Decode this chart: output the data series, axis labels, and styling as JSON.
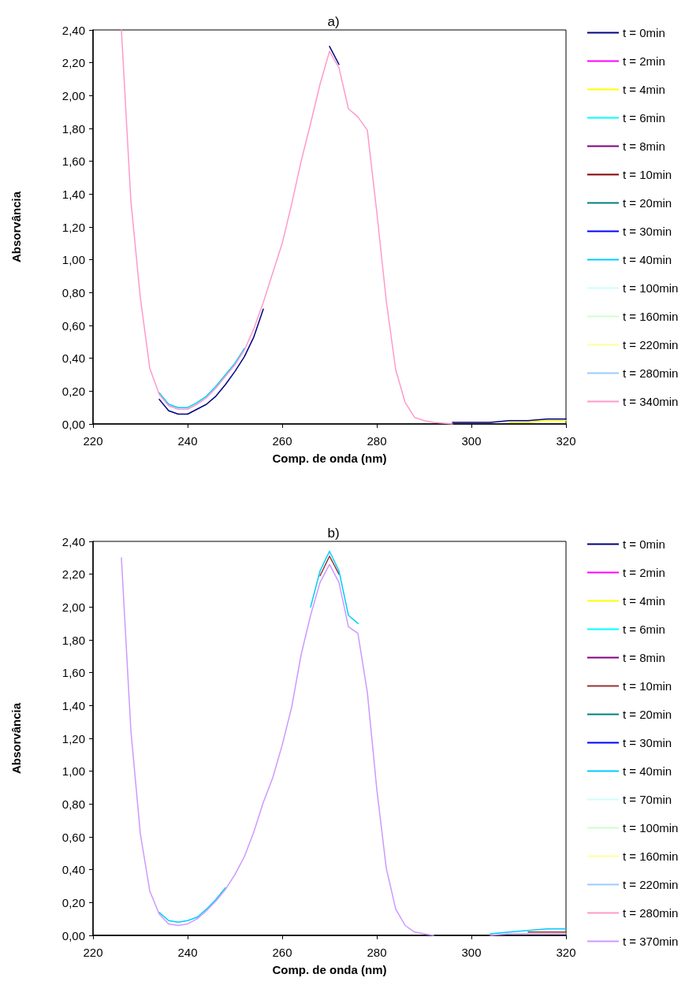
{
  "chart_data": [
    {
      "type": "line",
      "title": "a)",
      "xlabel": "Comp. de onda (nm)",
      "ylabel": "Absorvância",
      "legend": "right",
      "grid": false,
      "marker": "none",
      "x": [
        226,
        228,
        230,
        232,
        234,
        236,
        238,
        240,
        242,
        244,
        246,
        248,
        250,
        252,
        254,
        256,
        258,
        260,
        262,
        264,
        266,
        268,
        270,
        272,
        274,
        276,
        278,
        280,
        282,
        284,
        286,
        288,
        290,
        292,
        296,
        300,
        304,
        308,
        312,
        316,
        320
      ],
      "xlim": [
        220,
        320
      ],
      "xticks": [
        220,
        240,
        260,
        280,
        300,
        320
      ],
      "ylim": [
        0,
        2.4
      ],
      "yticks": [
        {
          "value": 0,
          "label": "0,00"
        },
        {
          "value": 0.2,
          "label": "0,20"
        },
        {
          "value": 0.4,
          "label": "0,40"
        },
        {
          "value": 0.6,
          "label": "0,60"
        },
        {
          "value": 0.8,
          "label": "0,80"
        },
        {
          "value": 1,
          "label": "1,00"
        },
        {
          "value": 1.2,
          "label": "1,20"
        },
        {
          "value": 1.4,
          "label": "1,40"
        },
        {
          "value": 1.6,
          "label": "1,60"
        },
        {
          "value": 1.8,
          "label": "1,80"
        },
        {
          "value": 2,
          "label": "2,00"
        },
        {
          "value": 2.2,
          "label": "2,20"
        },
        {
          "value": 2.4,
          "label": "2,40"
        }
      ],
      "series": [
        {
          "name": "t = 0min",
          "color": "#000080",
          "values": [
            null,
            null,
            null,
            null,
            0.15,
            0.08,
            0.06,
            0.06,
            0.09,
            0.12,
            0.17,
            0.24,
            0.32,
            0.41,
            0.53,
            0.7,
            null,
            null,
            null,
            null,
            null,
            null,
            2.3,
            2.19,
            null,
            null,
            null,
            null,
            null,
            null,
            null,
            null,
            null,
            null,
            0.01,
            0.01,
            0.01,
            0.02,
            0.02,
            0.03,
            0.03
          ]
        },
        {
          "name": "t = 2min",
          "color": "#ff00ff",
          "values": [
            null,
            null,
            null,
            null,
            null,
            null,
            null,
            null,
            null,
            null,
            null,
            null,
            null,
            null,
            null,
            null,
            null,
            null,
            null,
            null,
            null,
            null,
            null,
            null,
            null,
            null,
            null,
            null,
            null,
            null,
            null,
            null,
            null,
            null,
            null,
            null,
            null,
            null,
            null,
            null,
            null
          ]
        },
        {
          "name": "t = 4min",
          "color": "#ffff00",
          "values": [
            null,
            null,
            null,
            null,
            null,
            null,
            null,
            null,
            null,
            null,
            null,
            null,
            null,
            null,
            null,
            null,
            null,
            null,
            null,
            null,
            null,
            null,
            null,
            null,
            null,
            null,
            null,
            null,
            null,
            null,
            null,
            null,
            null,
            null,
            null,
            null,
            null,
            0.01,
            0.01,
            0.02,
            0.02
          ]
        },
        {
          "name": "t = 6min",
          "color": "#00ffff",
          "values": [
            null,
            null,
            null,
            null,
            null,
            null,
            null,
            null,
            null,
            null,
            null,
            null,
            null,
            null,
            null,
            null,
            null,
            null,
            null,
            null,
            null,
            null,
            null,
            null,
            null,
            null,
            null,
            null,
            null,
            null,
            null,
            null,
            null,
            null,
            null,
            null,
            null,
            null,
            null,
            null,
            null
          ]
        },
        {
          "name": "t = 8min",
          "color": "#800080",
          "values": [
            null,
            null,
            null,
            null,
            null,
            null,
            null,
            null,
            null,
            null,
            null,
            null,
            null,
            null,
            null,
            null,
            null,
            null,
            null,
            null,
            null,
            null,
            null,
            null,
            null,
            null,
            null,
            null,
            null,
            null,
            null,
            null,
            null,
            null,
            null,
            null,
            null,
            null,
            null,
            null,
            null
          ]
        },
        {
          "name": "t = 10min",
          "color": "#800000",
          "values": [
            null,
            null,
            null,
            null,
            null,
            null,
            null,
            null,
            null,
            null,
            null,
            null,
            null,
            null,
            null,
            null,
            null,
            null,
            null,
            null,
            null,
            null,
            null,
            null,
            null,
            null,
            null,
            null,
            null,
            null,
            null,
            null,
            null,
            null,
            null,
            null,
            null,
            null,
            null,
            null,
            null
          ]
        },
        {
          "name": "t = 20min",
          "color": "#008080",
          "values": [
            null,
            null,
            null,
            null,
            null,
            null,
            null,
            null,
            null,
            null,
            null,
            null,
            null,
            null,
            null,
            null,
            null,
            null,
            null,
            null,
            null,
            null,
            null,
            null,
            null,
            null,
            null,
            null,
            null,
            null,
            null,
            null,
            null,
            null,
            null,
            null,
            null,
            null,
            null,
            null,
            null
          ]
        },
        {
          "name": "t = 30min",
          "color": "#0000ff",
          "values": [
            null,
            null,
            null,
            null,
            null,
            null,
            null,
            null,
            null,
            null,
            null,
            null,
            null,
            null,
            null,
            null,
            null,
            null,
            null,
            null,
            null,
            null,
            null,
            null,
            null,
            null,
            null,
            null,
            null,
            null,
            null,
            null,
            null,
            null,
            null,
            null,
            null,
            null,
            null,
            null,
            null
          ]
        },
        {
          "name": "t = 40min",
          "color": "#00ccff",
          "values": [
            null,
            null,
            null,
            null,
            0.19,
            0.12,
            0.1,
            0.1,
            0.13,
            0.17,
            0.23,
            0.3,
            0.37,
            0.46,
            null,
            null,
            null,
            null,
            null,
            null,
            null,
            null,
            null,
            null,
            null,
            null,
            null,
            null,
            null,
            null,
            null,
            null,
            null,
            null,
            null,
            null,
            null,
            null,
            null,
            null,
            null
          ]
        },
        {
          "name": "t = 100min",
          "color": "#ccffff",
          "values": [
            null,
            null,
            null,
            null,
            null,
            null,
            null,
            null,
            null,
            null,
            null,
            null,
            null,
            null,
            null,
            null,
            null,
            null,
            null,
            null,
            null,
            null,
            null,
            null,
            null,
            null,
            null,
            null,
            null,
            null,
            null,
            null,
            null,
            null,
            null,
            null,
            null,
            null,
            null,
            null,
            null
          ]
        },
        {
          "name": "t = 160min",
          "color": "#ccffcc",
          "values": [
            null,
            null,
            null,
            null,
            null,
            null,
            null,
            null,
            null,
            null,
            null,
            null,
            null,
            null,
            null,
            null,
            null,
            null,
            null,
            null,
            null,
            null,
            null,
            null,
            null,
            null,
            null,
            null,
            null,
            null,
            null,
            null,
            null,
            null,
            null,
            null,
            null,
            null,
            null,
            null,
            null
          ]
        },
        {
          "name": "t = 220min",
          "color": "#ffff99",
          "values": [
            null,
            null,
            null,
            null,
            null,
            null,
            null,
            null,
            null,
            null,
            null,
            null,
            null,
            null,
            null,
            null,
            null,
            null,
            null,
            null,
            null,
            null,
            null,
            null,
            null,
            null,
            null,
            null,
            null,
            null,
            null,
            null,
            null,
            null,
            null,
            null,
            null,
            null,
            null,
            null,
            null
          ]
        },
        {
          "name": "t = 280min",
          "color": "#99ccff",
          "values": [
            null,
            null,
            null,
            null,
            null,
            null,
            null,
            null,
            null,
            null,
            null,
            null,
            null,
            null,
            null,
            null,
            null,
            null,
            null,
            null,
            null,
            null,
            null,
            null,
            null,
            null,
            null,
            null,
            null,
            null,
            null,
            null,
            null,
            null,
            null,
            null,
            null,
            null,
            null,
            null,
            null
          ]
        },
        {
          "name": "t = 340min",
          "color": "#ff99cc",
          "values": [
            2.4,
            1.36,
            0.77,
            0.34,
            0.18,
            0.11,
            0.09,
            0.09,
            0.12,
            0.16,
            0.22,
            0.29,
            0.36,
            0.45,
            0.58,
            0.74,
            0.92,
            1.1,
            1.34,
            1.6,
            1.83,
            2.07,
            2.27,
            2.17,
            1.92,
            1.87,
            1.79,
            1.29,
            0.75,
            0.33,
            0.13,
            0.04,
            0.02,
            0.01,
            0.0,
            null,
            null,
            null,
            null,
            null,
            null
          ]
        }
      ]
    },
    {
      "type": "line",
      "title": "b)",
      "xlabel": "Comp. de onda (nm)",
      "ylabel": "Absorvância",
      "legend": "right",
      "grid": false,
      "marker": "none",
      "x": [
        226,
        228,
        230,
        232,
        234,
        236,
        238,
        240,
        242,
        244,
        246,
        248,
        250,
        252,
        254,
        256,
        258,
        260,
        262,
        264,
        266,
        268,
        270,
        272,
        274,
        276,
        278,
        280,
        282,
        284,
        286,
        288,
        290,
        292,
        296,
        300,
        304,
        308,
        312,
        316,
        320
      ],
      "xlim": [
        220,
        320
      ],
      "xticks": [
        220,
        240,
        260,
        280,
        300,
        320
      ],
      "ylim": [
        0,
        2.4
      ],
      "yticks": [
        {
          "value": 0,
          "label": "0,00"
        },
        {
          "value": 0.2,
          "label": "0,20"
        },
        {
          "value": 0.4,
          "label": "0,40"
        },
        {
          "value": 0.6,
          "label": "0,60"
        },
        {
          "value": 0.8,
          "label": "0,80"
        },
        {
          "value": 1,
          "label": "1,00"
        },
        {
          "value": 1.2,
          "label": "1,20"
        },
        {
          "value": 1.4,
          "label": "1,40"
        },
        {
          "value": 1.6,
          "label": "1,60"
        },
        {
          "value": 1.8,
          "label": "1,80"
        },
        {
          "value": 2,
          "label": "2,00"
        },
        {
          "value": 2.2,
          "label": "2,20"
        },
        {
          "value": 2.4,
          "label": "2,40"
        }
      ],
      "series": [
        {
          "name": "t = 0min",
          "color": "#000080",
          "values": [
            null,
            null,
            null,
            null,
            null,
            null,
            null,
            null,
            null,
            null,
            null,
            null,
            null,
            null,
            null,
            null,
            null,
            null,
            null,
            null,
            null,
            null,
            null,
            null,
            null,
            null,
            null,
            null,
            null,
            null,
            null,
            null,
            null,
            null,
            null,
            null,
            null,
            null,
            null,
            null,
            null
          ]
        },
        {
          "name": "t = 2min",
          "color": "#ff00ff",
          "values": [
            null,
            null,
            null,
            null,
            null,
            null,
            null,
            null,
            null,
            null,
            null,
            null,
            null,
            null,
            null,
            null,
            null,
            null,
            null,
            null,
            null,
            null,
            null,
            null,
            null,
            null,
            null,
            null,
            null,
            null,
            null,
            null,
            null,
            null,
            null,
            null,
            null,
            null,
            null,
            null,
            null
          ]
        },
        {
          "name": "t = 4min",
          "color": "#ffff00",
          "values": [
            null,
            null,
            null,
            null,
            null,
            null,
            null,
            null,
            null,
            null,
            null,
            null,
            null,
            null,
            null,
            null,
            null,
            null,
            null,
            null,
            null,
            null,
            null,
            null,
            null,
            null,
            null,
            null,
            null,
            null,
            null,
            null,
            null,
            null,
            null,
            null,
            null,
            null,
            null,
            null,
            null
          ]
        },
        {
          "name": "t = 6min",
          "color": "#00ffff",
          "values": [
            null,
            null,
            null,
            null,
            null,
            null,
            null,
            null,
            null,
            null,
            null,
            null,
            null,
            null,
            null,
            null,
            null,
            null,
            null,
            null,
            null,
            null,
            null,
            null,
            null,
            null,
            null,
            null,
            null,
            null,
            null,
            null,
            null,
            null,
            null,
            null,
            null,
            null,
            null,
            null,
            null
          ]
        },
        {
          "name": "t = 8min",
          "color": "#800080",
          "values": [
            null,
            null,
            null,
            null,
            null,
            null,
            null,
            null,
            null,
            null,
            null,
            null,
            null,
            null,
            null,
            null,
            null,
            null,
            null,
            null,
            null,
            null,
            null,
            null,
            null,
            null,
            null,
            null,
            null,
            null,
            null,
            null,
            null,
            null,
            null,
            null,
            null,
            null,
            null,
            null,
            null
          ]
        },
        {
          "name": "t = 10min",
          "color": "#993333",
          "values": [
            null,
            null,
            null,
            null,
            null,
            null,
            null,
            null,
            null,
            null,
            null,
            null,
            null,
            null,
            null,
            null,
            null,
            null,
            null,
            null,
            null,
            2.19,
            2.31,
            2.2,
            null,
            null,
            null,
            null,
            null,
            null,
            null,
            null,
            null,
            null,
            null,
            null,
            null,
            null,
            0.02,
            0.02,
            0.02
          ]
        },
        {
          "name": "t = 20min",
          "color": "#008080",
          "values": [
            null,
            null,
            null,
            null,
            null,
            null,
            null,
            null,
            null,
            null,
            null,
            null,
            null,
            null,
            null,
            null,
            null,
            null,
            null,
            null,
            null,
            null,
            null,
            null,
            null,
            null,
            null,
            null,
            null,
            null,
            null,
            null,
            null,
            null,
            null,
            null,
            null,
            null,
            null,
            null,
            null
          ]
        },
        {
          "name": "t = 30min",
          "color": "#0000ff",
          "values": [
            null,
            null,
            null,
            null,
            null,
            null,
            null,
            null,
            null,
            null,
            null,
            null,
            null,
            null,
            null,
            null,
            null,
            null,
            null,
            null,
            null,
            null,
            null,
            null,
            null,
            null,
            null,
            null,
            null,
            null,
            null,
            null,
            null,
            null,
            null,
            null,
            null,
            null,
            null,
            null,
            null
          ]
        },
        {
          "name": "t = 40min",
          "color": "#00ccff",
          "values": [
            null,
            null,
            null,
            null,
            0.14,
            0.09,
            0.08,
            0.09,
            0.11,
            0.16,
            0.22,
            0.29,
            null,
            null,
            null,
            null,
            null,
            null,
            null,
            null,
            2.0,
            2.22,
            2.34,
            2.22,
            1.95,
            1.9,
            null,
            null,
            null,
            null,
            null,
            null,
            null,
            null,
            null,
            null,
            0.01,
            0.02,
            0.03,
            0.04,
            0.04
          ]
        },
        {
          "name": "t = 70min",
          "color": "#ccffff",
          "values": [
            null,
            null,
            null,
            null,
            null,
            null,
            null,
            null,
            null,
            null,
            null,
            null,
            null,
            null,
            null,
            null,
            null,
            null,
            null,
            null,
            null,
            null,
            null,
            null,
            null,
            null,
            null,
            null,
            null,
            null,
            null,
            null,
            null,
            null,
            null,
            null,
            null,
            null,
            null,
            null,
            null
          ]
        },
        {
          "name": "t = 100min",
          "color": "#ccffcc",
          "values": [
            null,
            null,
            null,
            null,
            null,
            null,
            null,
            null,
            null,
            null,
            null,
            null,
            null,
            null,
            null,
            null,
            null,
            null,
            null,
            null,
            null,
            null,
            null,
            null,
            null,
            null,
            null,
            null,
            null,
            null,
            null,
            null,
            null,
            null,
            null,
            null,
            null,
            null,
            null,
            null,
            null
          ]
        },
        {
          "name": "t = 160min",
          "color": "#ffff99",
          "values": [
            null,
            null,
            null,
            null,
            null,
            null,
            null,
            null,
            null,
            null,
            null,
            null,
            null,
            null,
            null,
            null,
            null,
            null,
            null,
            null,
            null,
            null,
            null,
            null,
            null,
            null,
            null,
            null,
            null,
            null,
            null,
            null,
            null,
            null,
            null,
            null,
            null,
            null,
            null,
            null,
            null
          ]
        },
        {
          "name": "t = 220min",
          "color": "#99ccff",
          "values": [
            null,
            null,
            null,
            null,
            null,
            null,
            null,
            null,
            null,
            null,
            null,
            null,
            null,
            null,
            null,
            null,
            null,
            null,
            null,
            null,
            null,
            null,
            null,
            null,
            null,
            null,
            null,
            null,
            null,
            null,
            null,
            null,
            null,
            null,
            null,
            null,
            null,
            null,
            null,
            null,
            null
          ]
        },
        {
          "name": "t = 280min",
          "color": "#ff99cc",
          "values": [
            null,
            null,
            null,
            null,
            null,
            null,
            null,
            null,
            null,
            null,
            null,
            null,
            null,
            null,
            null,
            null,
            null,
            null,
            null,
            null,
            null,
            null,
            null,
            null,
            null,
            null,
            null,
            null,
            null,
            null,
            null,
            null,
            null,
            null,
            null,
            null,
            null,
            null,
            null,
            null,
            null
          ]
        },
        {
          "name": "t = 370min",
          "color": "#cc99ff",
          "values": [
            2.3,
            1.25,
            0.62,
            0.27,
            0.13,
            0.07,
            0.06,
            0.07,
            0.1,
            0.15,
            0.21,
            0.28,
            0.37,
            0.48,
            0.63,
            0.81,
            0.96,
            1.16,
            1.39,
            1.71,
            1.95,
            2.15,
            2.26,
            2.15,
            1.88,
            1.84,
            1.48,
            0.89,
            0.41,
            0.16,
            0.06,
            0.02,
            0.01,
            0.0,
            null,
            null,
            0.0,
            0.01,
            0.01,
            0.01,
            0.01
          ]
        }
      ]
    }
  ]
}
